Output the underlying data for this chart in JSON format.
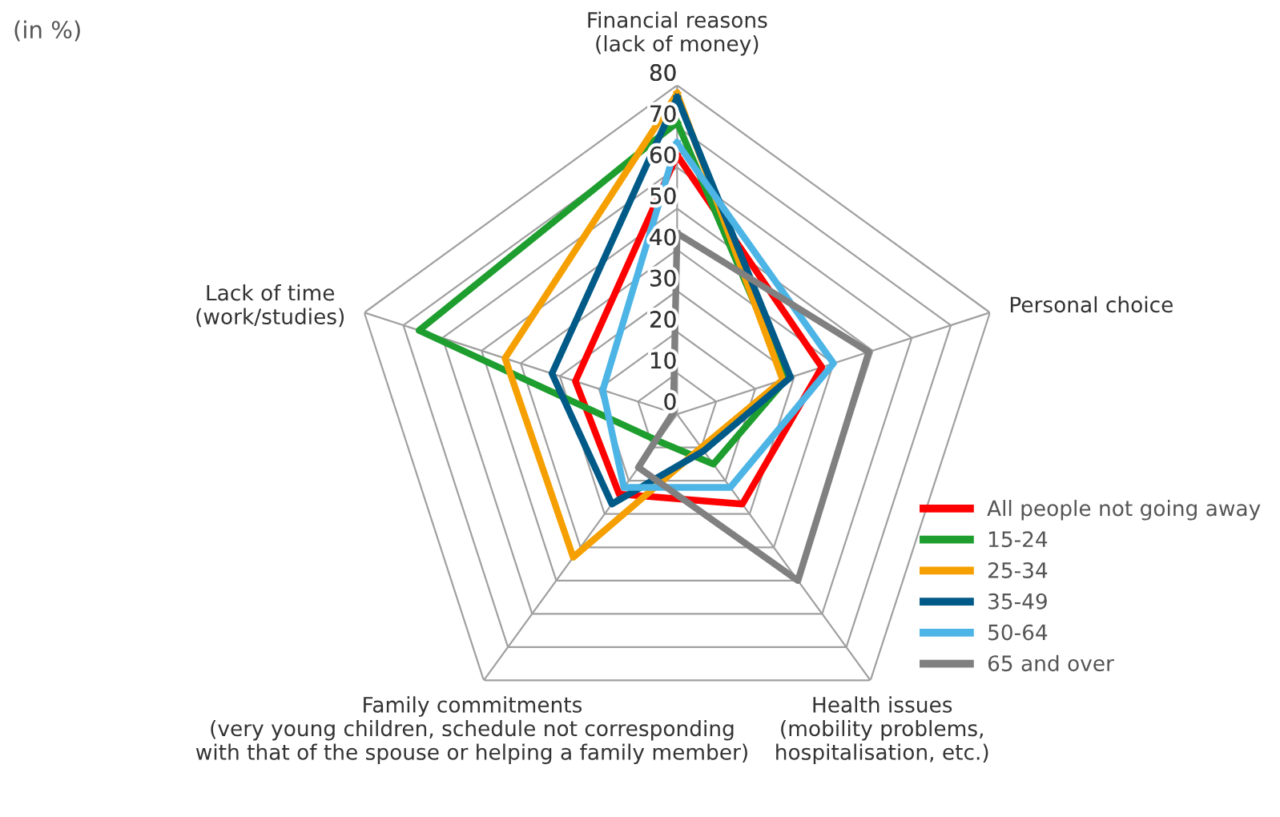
{
  "chart_data": {
    "type": "radar",
    "categories": [
      "Financial reasons\n(lack of money)",
      "Personal choice",
      "Health issues\n(mobility problems,\nhospitalisation, etc.)",
      "Family commitments\n(very young children, schedule not corresponding\nwith that of the spouse or helping a family member)",
      "Lack of time\n(work/studies)"
    ],
    "series": [
      {
        "name": "All people not going away",
        "color": "#ff0000",
        "values": [
          63,
          37,
          27,
          24,
          26
        ]
      },
      {
        "name": "15-24",
        "color": "#1e9e2e",
        "values": [
          71,
          28,
          15,
          8,
          66
        ]
      },
      {
        "name": "25-34",
        "color": "#f5a000",
        "values": [
          78,
          27,
          10,
          43,
          44
        ]
      },
      {
        "name": "35-49",
        "color": "#005a87",
        "values": [
          77,
          29,
          11,
          27,
          32
        ]
      },
      {
        "name": "50-64",
        "color": "#4db4e6",
        "values": [
          66,
          40,
          22,
          22,
          19
        ]
      },
      {
        "name": "65 and over",
        "color": "#808080",
        "values": [
          44,
          49,
          50,
          16,
          1
        ]
      }
    ],
    "ylim": [
      0,
      80
    ],
    "yticks": [
      0,
      10,
      20,
      30,
      40,
      50,
      60,
      70,
      80
    ],
    "grid": true,
    "legend": "bottom right",
    "marker": "none",
    "line_style": "solid",
    "annotations": [
      "(in %)"
    ]
  }
}
